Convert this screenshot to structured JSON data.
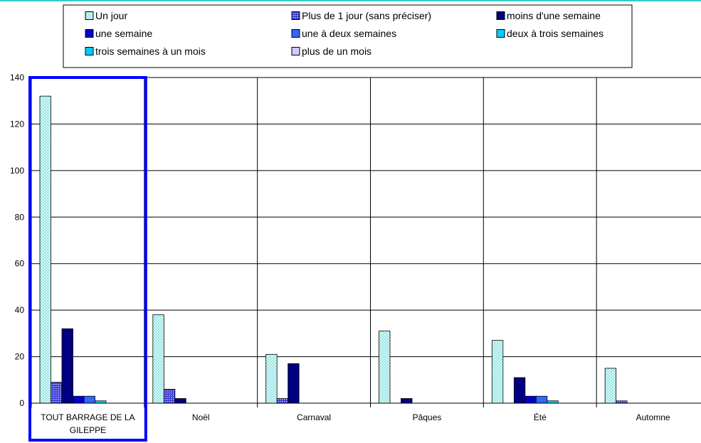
{
  "chart_data": {
    "type": "bar",
    "categories": [
      "TOUT BARRAGE DE LA GILEPPE",
      "Noël",
      "Carnaval",
      "Pâques",
      "Été",
      "Automne"
    ],
    "category_lines": [
      [
        "TOUT BARRAGE DE LA",
        "GILEPPE"
      ],
      [
        "Noël"
      ],
      [
        "Carnaval"
      ],
      [
        "Pâques"
      ],
      [
        "Été"
      ],
      [
        "Automne"
      ]
    ],
    "series": [
      {
        "name": "Un jour",
        "color": "#ccffff",
        "pattern": "dots",
        "values": [
          132,
          38,
          21,
          31,
          27,
          15
        ]
      },
      {
        "name": "Plus de 1 jour (sans préciser)",
        "color": "#3333cc",
        "pattern": "grid",
        "values": [
          9,
          6,
          2,
          0,
          0,
          1
        ]
      },
      {
        "name": "moins d'une semaine",
        "color": "#000080",
        "pattern": "solid",
        "values": [
          32,
          2,
          17,
          2,
          11,
          0
        ]
      },
      {
        "name": "une semaine",
        "color": "#0000cc",
        "pattern": "solid",
        "values": [
          3,
          0,
          0,
          0,
          3,
          0
        ]
      },
      {
        "name": "une à deux semaines",
        "color": "#3366ff",
        "pattern": "solid",
        "values": [
          3,
          0,
          0,
          0,
          3,
          0
        ]
      },
      {
        "name": "deux à trois semaines",
        "color": "#00ccff",
        "pattern": "solid",
        "values": [
          1,
          0,
          0,
          0,
          1,
          0
        ]
      },
      {
        "name": "trois semaines à un mois",
        "color": "#00ccff",
        "pattern": "solid",
        "values": [
          0,
          0,
          0,
          0,
          0,
          0
        ]
      },
      {
        "name": "plus de un mois",
        "color": "#ccccff",
        "pattern": "solid",
        "values": [
          0,
          0,
          0,
          0,
          0,
          0
        ]
      }
    ],
    "ylim": [
      0,
      140
    ],
    "yticks": [
      0,
      20,
      40,
      60,
      80,
      100,
      120,
      140
    ],
    "grid": true,
    "legend_position": "top",
    "highlight_category": "TOUT BARRAGE DE LA GILEPPE",
    "highlight_color": "#0000ff"
  }
}
